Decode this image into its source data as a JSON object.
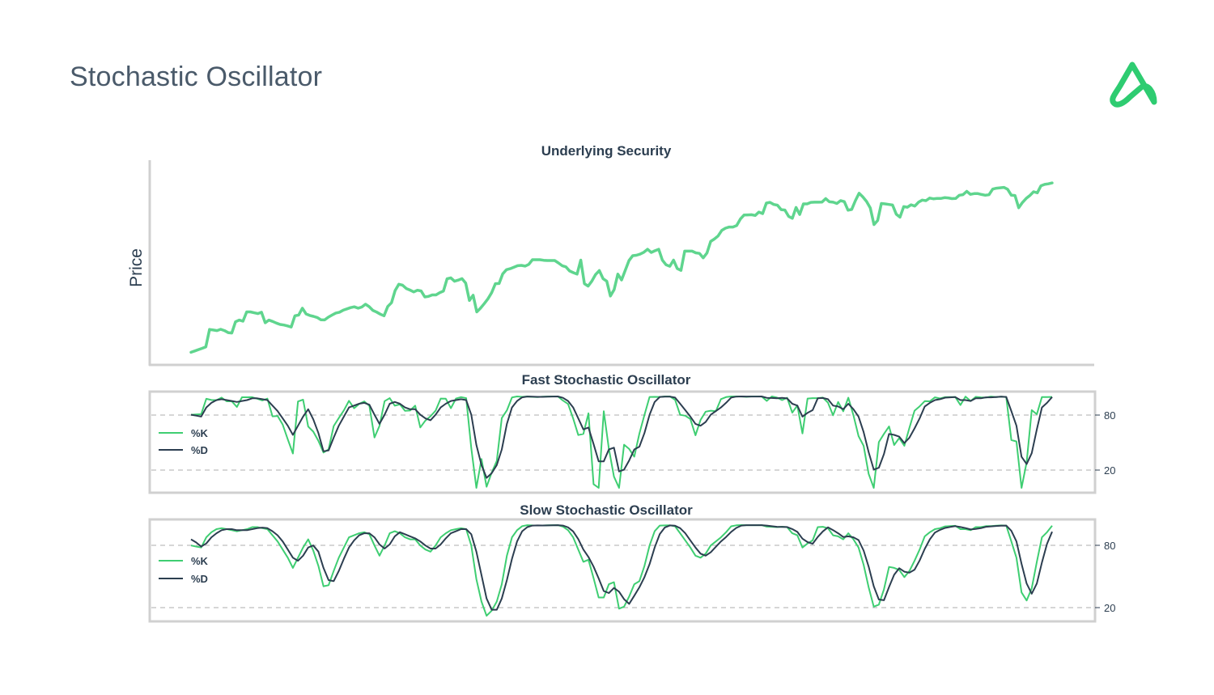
{
  "title": "Stochastic Oscillator",
  "colors": {
    "price": "#5fd58e",
    "k": "#3fce72",
    "d": "#2c3e50",
    "frame": "#d0d0d0",
    "grid": "#c8c8c8",
    "logo": "#2ecc71"
  },
  "chart_data": [
    {
      "type": "line",
      "title": "Underlying Security",
      "ylabel": "Price",
      "ylim": [
        0,
        100
      ],
      "series": [
        {
          "values": [
            2.0,
            2.7,
            3.4,
            4.1,
            4.9,
            14.2,
            13.9,
            13.6,
            14.3,
            13.6,
            12.5,
            12.3,
            18.3,
            19.2,
            18.6,
            23.6,
            23.6,
            23.1,
            22.7,
            23.4,
            17.8,
            19.2,
            18.5,
            17.6,
            16.9,
            16.6,
            16.1,
            15.5,
            21.5,
            21.9,
            25.6,
            22.5,
            21.7,
            21.2,
            20.6,
            19.4,
            19.3,
            20.8,
            21.9,
            23.0,
            23.4,
            24.5,
            25.2,
            25.9,
            26.3,
            25.6,
            26.2,
            27.7,
            26.4,
            24.4,
            23.5,
            22.4,
            21.5,
            26.5,
            28.5,
            35.0,
            38.4,
            37.9,
            36.1,
            35.3,
            34.3,
            35.2,
            34.8,
            31.6,
            31.9,
            32.7,
            32.7,
            33.9,
            34.7,
            41.3,
            41.8,
            40.0,
            40.6,
            41.4,
            39.0,
            29.7,
            32.5,
            23.6,
            25.6,
            28.0,
            30.6,
            33.9,
            38.7,
            38.8,
            44.0,
            46.2,
            46.7,
            47.5,
            48.3,
            48.5,
            48.1,
            49.0,
            51.5,
            51.5,
            51.5,
            51.2,
            51.1,
            51.1,
            51.1,
            49.8,
            48.3,
            47.7,
            45.5,
            44.6,
            43.8,
            51.3,
            38.7,
            37.4,
            40.1,
            43.6,
            45.7,
            41.4,
            40.0,
            32.1,
            35.5,
            43.8,
            40.7,
            45.9,
            51.1,
            53.7,
            53.9,
            54.5,
            55.5,
            57.1,
            55.4,
            56.3,
            57.1,
            51.3,
            48.8,
            48.0,
            51.3,
            46.8,
            45.8,
            56.1,
            56.1,
            56.1,
            55.2,
            54.9,
            52.5,
            55.1,
            61.3,
            62.6,
            64.2,
            67.2,
            68.4,
            69.0,
            69.0,
            69.8,
            73.3,
            75.4,
            75.5,
            75.6,
            75.2,
            77.0,
            76.2,
            81.8,
            82.2,
            81.1,
            80.7,
            78.3,
            78.1,
            74.7,
            73.7,
            79.5,
            75.7,
            81.4,
            81.4,
            82.2,
            82.3,
            82.3,
            82.4,
            84.2,
            82.5,
            82.3,
            81.6,
            83.1,
            82.6,
            78.0,
            78.4,
            83.1,
            87.1,
            85.1,
            82.7,
            79.2,
            70.3,
            72.5,
            81.6,
            81.4,
            81.1,
            80.8,
            75.9,
            74.3,
            79.9,
            79.6,
            80.9,
            80.2,
            82.3,
            83.4,
            83.1,
            84.5,
            84.1,
            84.3,
            84.3,
            84.7,
            84.6,
            84.2,
            84.3,
            86.0,
            86.3,
            88.1,
            86.5,
            86.9,
            86.9,
            86.4,
            86.0,
            86.3,
            89.3,
            89.8,
            90.0,
            90.2,
            89.2,
            86.0,
            85.9,
            79.3,
            82.1,
            84.3,
            85.9,
            87.9,
            87.3,
            91.1,
            91.8,
            92.1,
            92.6
          ]
        }
      ]
    },
    {
      "type": "line",
      "title": "Fast Stochastic Oscillator",
      "ylim": [
        0,
        100
      ],
      "yticks": [
        "80",
        "20"
      ],
      "ytick_values": [
        80,
        20
      ],
      "series": [
        {
          "name": "%K",
          "values": [
            80.0,
            80.3,
            80.6,
            97.4,
            96.1,
            95.9,
            98.8,
            94.7,
            94.8,
            88.5,
            99.1,
            99.1,
            99.2,
            97.5,
            95.7,
            97.6,
            78.2,
            78.7,
            69.2,
            53.0,
            37.6,
            94.5,
            96.5,
            67.1,
            61.5,
            51.4,
            38.7,
            42.1,
            67.6,
            76.4,
            84.8,
            95.2,
            87.1,
            91.9,
            94.6,
            89.7,
            55.1,
            67.8,
            94.9,
            98.1,
            89.9,
            91.3,
            84.3,
            84.6,
            89.9,
            66.1,
            73.6,
            78.3,
            84.4,
            97.7,
            97.5,
            87.2,
            97.7,
            99.3,
            98.1,
            43.5,
            0.0,
            31.6,
            1.2,
            16.6,
            29.4,
            76.4,
            84.8,
            98.9,
            100.0,
            99.6,
            100.0,
            99.6,
            99.3,
            99.8,
            99.9,
            100.0,
            100.0,
            95.5,
            91.8,
            75.9,
            57.8,
            59.0,
            81.6,
            4.1,
            0.0,
            83.8,
            42.8,
            12.3,
            0.0,
            47.3,
            42.6,
            34.2,
            59.3,
            79.8,
            99.5,
            99.6,
            99.5,
            100.0,
            100.0,
            96.4,
            79.9,
            78.9,
            75.3,
            57.5,
            74.3,
            83.4,
            84.4,
            83.8,
            97.1,
            99.3,
            100.0,
            100.0,
            100.0,
            99.6,
            100.0,
            100.0,
            100.0,
            95.1,
            100.0,
            98.8,
            96.0,
            98.5,
            82.3,
            90.1,
            59.6,
            97.7,
            98.1,
            98.1,
            98.8,
            93.3,
            79.4,
            94.0,
            83.7,
            98.7,
            79.4,
            56.6,
            45.9,
            15.3,
            0.0,
            50.1,
            59.0,
            67.2,
            46.9,
            54.5,
            46.0,
            65.8,
            84.4,
            89.2,
            94.9,
            94.7,
            99.0,
            97.8,
            99.2,
            99.4,
            99.3,
            90.6,
            99.8,
            95.0,
            99.6,
            99.0,
            98.8,
            99.9,
            99.4,
            99.8,
            99.4,
            52.3,
            50.8,
            0.0,
            28.0,
            85.0,
            80.5,
            99.4,
            99.4,
            99.5
          ]
        },
        {
          "name": "%D",
          "values": [
            80.0,
            79.0,
            78.0,
            88.0,
            93.0,
            96.0,
            97.0,
            96.0,
            95.0,
            94.0,
            95.0,
            96.0,
            98.0,
            98.0,
            97.0,
            96.0,
            90.0,
            84.0,
            76.0,
            68.0,
            58.0,
            68.0,
            78.0,
            86.0,
            75.0,
            60.0,
            40.0,
            41.0,
            55.0,
            68.0,
            78.0,
            88.0,
            90.0,
            92.0,
            93.0,
            91.0,
            80.0,
            70.0,
            80.0,
            92.0,
            94.0,
            92.0,
            88.0,
            86.0,
            86.0,
            80.0,
            76.0,
            74.0,
            80.0,
            88.0,
            92.0,
            95.0,
            96.0,
            97.0,
            96.0,
            80.0,
            47.0,
            25.0,
            11.0,
            16.0,
            25.0,
            42.0,
            70.0,
            88.0,
            95.0,
            99.0,
            99.9,
            99.7,
            99.6,
            99.6,
            99.8,
            99.9,
            100.0,
            98.5,
            95.0,
            88.0,
            76.0,
            64.0,
            66.0,
            48.0,
            29.0,
            29.0,
            42.0,
            44.0,
            18.0,
            20.0,
            30.0,
            42.0,
            45.0,
            60.0,
            80.0,
            94.0,
            99.5,
            99.7,
            99.8,
            98.8,
            92.0,
            85.0,
            78.0,
            70.0,
            68.0,
            72.0,
            80.0,
            84.0,
            88.0,
            93.0,
            98.8,
            99.8,
            100.0,
            99.9,
            99.9,
            99.9,
            100.0,
            98.5,
            98.3,
            98.0,
            98.4,
            97.9,
            92.0,
            90.0,
            78.0,
            82.0,
            85.0,
            98.0,
            98.3,
            97.0,
            90.0,
            89.0,
            86.0,
            92.0,
            86.0,
            78.0,
            61.0,
            39.0,
            20.0,
            22.0,
            37.0,
            59.0,
            58.0,
            56.0,
            49.0,
            55.0,
            65.0,
            76.0,
            89.0,
            93.0,
            96.0,
            97.0,
            98.7,
            99.0,
            99.3,
            96.0,
            96.0,
            95.0,
            98.0,
            98.0,
            99.0,
            99.0,
            99.4,
            99.7,
            99.5,
            84.0,
            68.0,
            34.0,
            26.0,
            38.0,
            64.0,
            88.0,
            93.0,
            99.4
          ]
        }
      ]
    },
    {
      "type": "line",
      "title": "Slow Stochastic Oscillator",
      "ylim": [
        0,
        100
      ],
      "yticks": [
        "80",
        "20"
      ],
      "ytick_values": [
        80,
        20
      ],
      "series": [
        {
          "name": "%K",
          "values": [
            80.0,
            79.0,
            78.0,
            88.0,
            93.0,
            96.0,
            97.0,
            96.0,
            95.0,
            94.0,
            95.0,
            96.0,
            98.0,
            98.0,
            97.0,
            96.0,
            90.0,
            84.0,
            76.0,
            68.0,
            58.0,
            68.0,
            78.0,
            86.0,
            75.0,
            60.0,
            40.0,
            41.0,
            55.0,
            68.0,
            78.0,
            88.0,
            90.0,
            92.0,
            93.0,
            91.0,
            80.0,
            70.0,
            80.0,
            92.0,
            94.0,
            92.0,
            88.0,
            86.0,
            86.0,
            80.0,
            76.0,
            74.0,
            80.0,
            88.0,
            92.0,
            95.0,
            96.0,
            97.0,
            96.0,
            80.0,
            47.0,
            25.0,
            11.0,
            16.0,
            25.0,
            42.0,
            70.0,
            88.0,
            95.0,
            99.0,
            99.9,
            99.7,
            99.6,
            99.6,
            99.8,
            99.9,
            100.0,
            98.5,
            95.0,
            88.0,
            76.0,
            64.0,
            66.0,
            48.0,
            29.0,
            29.0,
            42.0,
            44.0,
            18.0,
            20.0,
            30.0,
            42.0,
            45.0,
            60.0,
            80.0,
            94.0,
            99.5,
            99.7,
            99.8,
            98.8,
            92.0,
            85.0,
            78.0,
            70.0,
            68.0,
            72.0,
            80.0,
            84.0,
            88.0,
            93.0,
            98.8,
            99.8,
            100.0,
            99.9,
            99.9,
            99.9,
            100.0,
            98.5,
            98.3,
            98.0,
            98.4,
            97.9,
            92.0,
            90.0,
            78.0,
            82.0,
            85.0,
            98.0,
            98.3,
            97.0,
            90.0,
            89.0,
            86.0,
            92.0,
            86.0,
            78.0,
            61.0,
            39.0,
            20.0,
            22.0,
            37.0,
            59.0,
            58.0,
            56.0,
            49.0,
            55.0,
            65.0,
            76.0,
            89.0,
            93.0,
            96.0,
            97.0,
            98.7,
            99.0,
            99.3,
            96.0,
            96.0,
            95.0,
            98.0,
            98.0,
            99.0,
            99.0,
            99.4,
            99.7,
            99.5,
            84.0,
            68.0,
            34.0,
            26.0,
            38.0,
            64.0,
            88.0,
            93.0,
            99.4
          ]
        },
        {
          "name": "%D",
          "values": [
            86.0,
            83.0,
            79.0,
            82.0,
            88.0,
            92.0,
            95.0,
            96.0,
            96.0,
            95.0,
            95.0,
            95.0,
            96.0,
            97.0,
            97.5,
            97.0,
            94.0,
            90.0,
            84.0,
            76.0,
            68.0,
            65.0,
            70.0,
            78.0,
            80.0,
            74.0,
            58.0,
            46.0,
            45.0,
            55.0,
            67.0,
            78.0,
            85.0,
            90.0,
            92.0,
            92.0,
            88.0,
            81.0,
            77.0,
            81.0,
            89.0,
            93.0,
            91.0,
            89.0,
            87.0,
            84.0,
            80.0,
            77.0,
            77.0,
            81.0,
            87.0,
            92.0,
            94.0,
            96.0,
            96.0,
            91.0,
            74.0,
            51.0,
            28.0,
            17.0,
            17.0,
            28.0,
            46.0,
            67.0,
            84.0,
            94.0,
            98.0,
            99.5,
            99.7,
            99.6,
            99.7,
            99.8,
            99.9,
            99.5,
            97.8,
            93.8,
            86.3,
            76.0,
            68.7,
            59.3,
            47.7,
            35.3,
            33.3,
            38.3,
            34.7,
            27.3,
            22.7,
            30.7,
            39.0,
            49.0,
            61.7,
            78.0,
            91.2,
            97.7,
            99.7,
            99.4,
            97.0,
            92.0,
            85.0,
            78.0,
            72.0,
            70.0,
            73.3,
            78.7,
            84.0,
            88.3,
            93.3,
            97.2,
            99.5,
            99.9,
            99.9,
            99.9,
            99.9,
            99.5,
            98.9,
            98.3,
            98.2,
            98.1,
            96.1,
            93.3,
            86.7,
            83.3,
            81.7,
            88.3,
            93.8,
            97.8,
            95.1,
            92.0,
            88.3,
            89.0,
            88.0,
            85.3,
            75.0,
            59.3,
            40.0,
            27.0,
            26.3,
            39.3,
            51.3,
            57.7,
            54.3,
            53.3,
            56.3,
            65.3,
            76.7,
            86.0,
            92.7,
            95.3,
            97.2,
            98.2,
            99.0,
            98.1,
            97.1,
            95.7,
            96.3,
            97.0,
            98.3,
            98.7,
            99.1,
            99.4,
            99.5,
            94.4,
            84.0,
            62.0,
            42.7,
            32.7,
            42.7,
            63.3,
            81.7,
            93.5
          ]
        }
      ]
    }
  ]
}
